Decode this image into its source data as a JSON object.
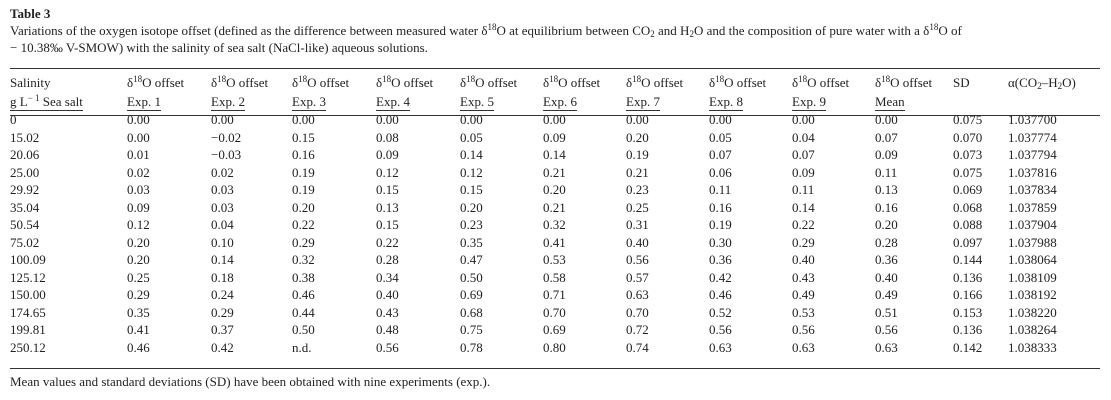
{
  "table_label": "Table 3",
  "caption": {
    "part1": "Variations of the oxygen isotope offset (defined as the difference between measured water δ",
    "part1_sup": "18",
    "part2": "O at equilibrium between CO",
    "co2_sub": "2",
    "part3": " and H",
    "h2o_sub": "2",
    "part4": "O and the composition of pure water with a δ",
    "part4_sup": "18",
    "part5": "O of",
    "line2": "− 10.38‰ V-SMOW) with the salinity of sea salt (NaCl-like) aqueous solutions."
  },
  "header": {
    "salinity": "Salinity",
    "units_pre": "g L",
    "units_sup": "− 1",
    "units_post": " Sea salt",
    "offset_pre": "δ",
    "offset_sup": "18",
    "offset_post": "O offset",
    "exp_labels": [
      "Exp. 1",
      "Exp. 2",
      "Exp. 3",
      "Exp. 4",
      "Exp. 5",
      "Exp. 6",
      "Exp. 7",
      "Exp. 8",
      "Exp. 9"
    ],
    "mean_label": "Mean",
    "sd": "SD",
    "alpha_pre": "α(CO",
    "alpha_sub1": "2",
    "alpha_mid": "–H",
    "alpha_sub2": "2",
    "alpha_post": "O)"
  },
  "rows": [
    [
      "0",
      "0.00",
      "0.00",
      "0.00",
      "0.00",
      "0.00",
      "0.00",
      "0.00",
      "0.00",
      "0.00",
      "0.00",
      "0.075",
      "1.037700"
    ],
    [
      "15.02",
      "0.00",
      "−0.02",
      "0.15",
      "0.08",
      "0.05",
      "0.09",
      "0.20",
      "0.05",
      "0.04",
      "0.07",
      "0.070",
      "1.037774"
    ],
    [
      "20.06",
      "0.01",
      "−0.03",
      "0.16",
      "0.09",
      "0.14",
      "0.14",
      "0.19",
      "0.07",
      "0.07",
      "0.09",
      "0.073",
      "1.037794"
    ],
    [
      "25.00",
      "0.02",
      "0.02",
      "0.19",
      "0.12",
      "0.12",
      "0.21",
      "0.21",
      "0.06",
      "0.09",
      "0.11",
      "0.075",
      "1.037816"
    ],
    [
      "29.92",
      "0.03",
      "0.03",
      "0.19",
      "0.15",
      "0.15",
      "0.20",
      "0.23",
      "0.11",
      "0.11",
      "0.13",
      "0.069",
      "1.037834"
    ],
    [
      "35.04",
      "0.09",
      "0.03",
      "0.20",
      "0.13",
      "0.20",
      "0.21",
      "0.25",
      "0.16",
      "0.14",
      "0.16",
      "0.068",
      "1.037859"
    ],
    [
      "50.54",
      "0.12",
      "0.04",
      "0.22",
      "0.15",
      "0.23",
      "0.32",
      "0.31",
      "0.19",
      "0.22",
      "0.20",
      "0.088",
      "1.037904"
    ],
    [
      "75.02",
      "0.20",
      "0.10",
      "0.29",
      "0.22",
      "0.35",
      "0.41",
      "0.40",
      "0.30",
      "0.29",
      "0.28",
      "0.097",
      "1.037988"
    ],
    [
      "100.09",
      "0.20",
      "0.14",
      "0.32",
      "0.28",
      "0.47",
      "0.53",
      "0.56",
      "0.36",
      "0.40",
      "0.36",
      "0.144",
      "1.038064"
    ],
    [
      "125.12",
      "0.25",
      "0.18",
      "0.38",
      "0.34",
      "0.50",
      "0.58",
      "0.57",
      "0.42",
      "0.43",
      "0.40",
      "0.136",
      "1.038109"
    ],
    [
      "150.00",
      "0.29",
      "0.24",
      "0.46",
      "0.40",
      "0.69",
      "0.71",
      "0.63",
      "0.46",
      "0.49",
      "0.49",
      "0.166",
      "1.038192"
    ],
    [
      "174.65",
      "0.35",
      "0.29",
      "0.44",
      "0.43",
      "0.68",
      "0.70",
      "0.70",
      "0.52",
      "0.53",
      "0.51",
      "0.153",
      "1.038220"
    ],
    [
      "199.81",
      "0.41",
      "0.37",
      "0.50",
      "0.48",
      "0.75",
      "0.69",
      "0.72",
      "0.56",
      "0.56",
      "0.56",
      "0.136",
      "1.038264"
    ],
    [
      "250.12",
      "0.46",
      "0.42",
      "n.d.",
      "0.56",
      "0.78",
      "0.80",
      "0.74",
      "0.63",
      "0.63",
      "0.63",
      "0.142",
      "1.038333"
    ]
  ],
  "footnote": "Mean values and standard deviations (SD) have been obtained with nine experiments (exp.)."
}
